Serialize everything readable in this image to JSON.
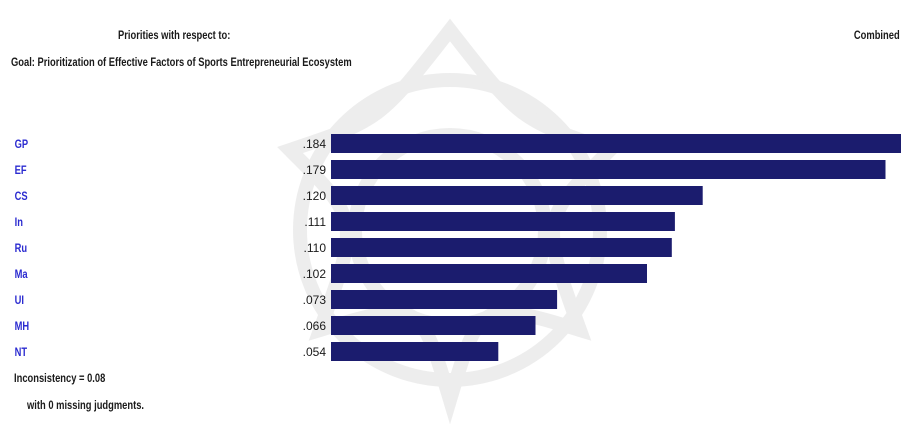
{
  "header": {
    "priorities_label": "Priorities with respect to:",
    "goal_label": "Goal: Prioritization of Effective Factors of Sports Entrepreneurial Ecosystem",
    "mode_label": "Combined"
  },
  "footer": {
    "inconsistency": "Inconsistency = 0.08",
    "missing": "with 0  missing judgments."
  },
  "colors": {
    "bar": "#1b1c6e",
    "label": "#2b2bd0",
    "text": "#1a1a1a"
  },
  "chart_data": {
    "type": "bar",
    "orientation": "horizontal",
    "categories": [
      "GP",
      "EF",
      "CS",
      "In",
      "Ru",
      "Ma",
      "UI",
      "MH",
      "NT"
    ],
    "values": [
      0.184,
      0.179,
      0.12,
      0.111,
      0.11,
      0.102,
      0.073,
      0.066,
      0.054
    ],
    "value_labels": [
      ".184",
      ".179",
      ".120",
      ".111",
      ".110",
      ".102",
      ".073",
      ".066",
      ".054"
    ],
    "xlim": [
      0,
      0.184
    ],
    "grid": false,
    "legend": "none"
  }
}
